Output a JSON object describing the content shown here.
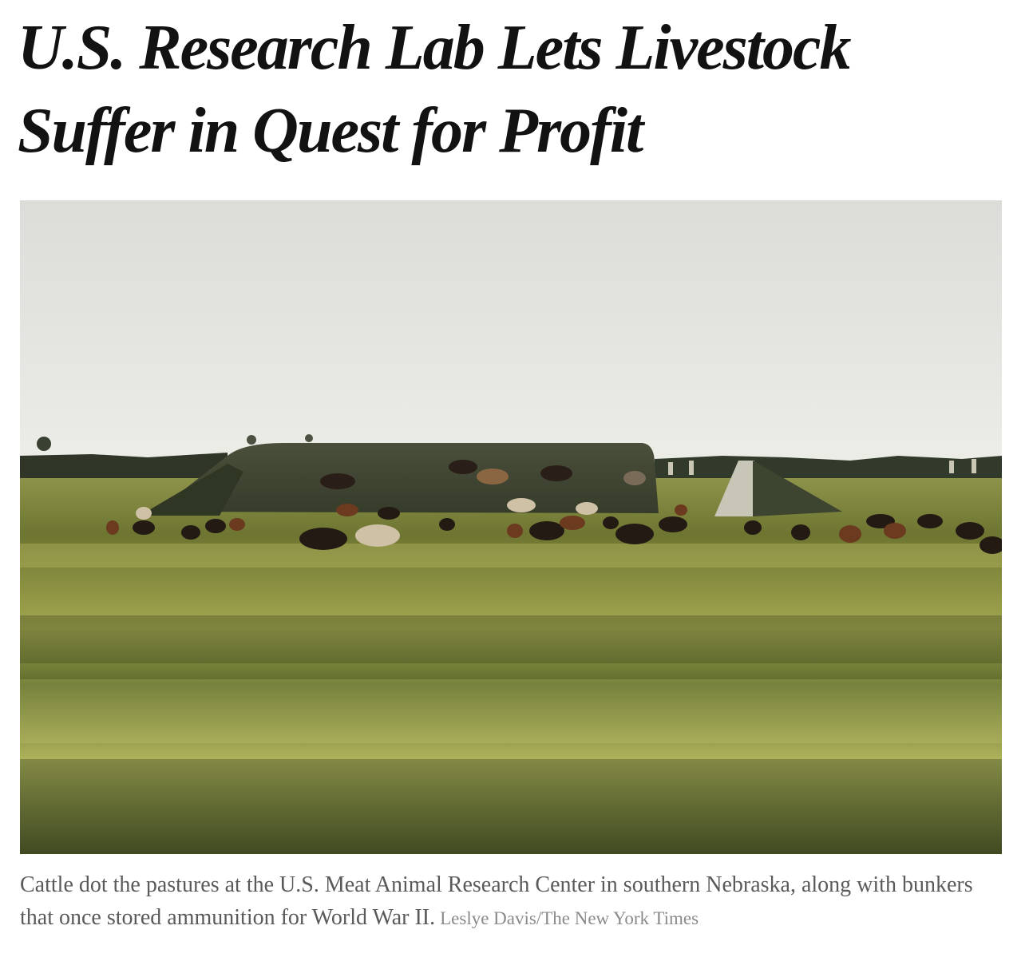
{
  "article": {
    "headline": "U.S. Research Lab Lets Livestock Suffer in Quest for Profit"
  },
  "photo": {
    "caption": "Cattle dot the pastures at the U.S. Meat Animal Research Center in southern Nebraska, along with bunkers that once stored ammunition for World War II.",
    "credit": "Leslye Davis/The New York Times",
    "colors": {
      "sky_top": "#dedfdb",
      "sky_bottom": "#e9eae4",
      "grass_light": "#b8ba5a",
      "grass_dark": "#3d4520",
      "bunker": "#3e4431",
      "treeline": "#2e3527"
    }
  }
}
